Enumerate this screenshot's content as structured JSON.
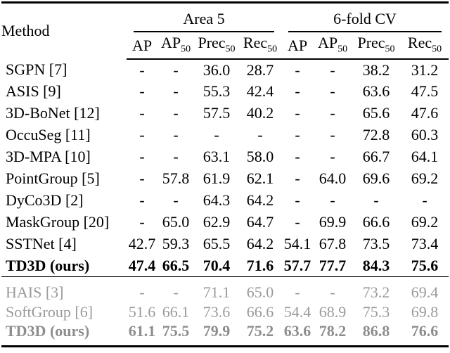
{
  "colors": {
    "text": "#000000",
    "muted_text": "#9a9a9a",
    "muted_bold_text": "#8d8d8d",
    "rule": "#000000",
    "background": "#ffffff"
  },
  "table": {
    "method_header": "Method",
    "groups": [
      {
        "label": "Area 5"
      },
      {
        "label": "6-fold CV"
      }
    ],
    "metrics": [
      {
        "base": "AP",
        "sub": ""
      },
      {
        "base": "AP",
        "sub": "50"
      },
      {
        "base": "Prec",
        "sub": "50"
      },
      {
        "base": "Rec",
        "sub": "50"
      }
    ],
    "sections": [
      {
        "muted": false,
        "rows": [
          {
            "method": "SGPN [7]",
            "bold": false,
            "values": [
              "-",
              "-",
              "36.0",
              "28.7",
              "-",
              "-",
              "38.2",
              "31.2"
            ]
          },
          {
            "method": "ASIS [9]",
            "bold": false,
            "values": [
              "-",
              "-",
              "55.3",
              "42.4",
              "-",
              "-",
              "63.6",
              "47.5"
            ]
          },
          {
            "method": "3D-BoNet [12]",
            "bold": false,
            "values": [
              "-",
              "-",
              "57.5",
              "40.2",
              "-",
              "-",
              "65.6",
              "47.6"
            ]
          },
          {
            "method": "OccuSeg [11]",
            "bold": false,
            "values": [
              "-",
              "-",
              "-",
              "-",
              "-",
              "-",
              "72.8",
              "60.3"
            ]
          },
          {
            "method": "3D-MPA [10]",
            "bold": false,
            "values": [
              "-",
              "-",
              "63.1",
              "58.0",
              "-",
              "-",
              "66.7",
              "64.1"
            ]
          },
          {
            "method": "PointGroup [5]",
            "bold": false,
            "values": [
              "-",
              "57.8",
              "61.9",
              "62.1",
              "-",
              "64.0",
              "69.6",
              "69.2"
            ]
          },
          {
            "method": "DyCo3D [2]",
            "bold": false,
            "values": [
              "-",
              "-",
              "64.3",
              "64.2",
              "-",
              "-",
              "-",
              "-"
            ]
          },
          {
            "method": "MaskGroup [20]",
            "bold": false,
            "values": [
              "-",
              "65.0",
              "62.9",
              "64.7",
              "-",
              "69.9",
              "66.6",
              "69.2"
            ]
          },
          {
            "method": "SSTNet [4]",
            "bold": false,
            "values": [
              "42.7",
              "59.3",
              "65.5",
              "64.2",
              "54.1",
              "67.8",
              "73.5",
              "73.4"
            ]
          },
          {
            "method": "TD3D (ours)",
            "bold": true,
            "values": [
              "47.4",
              "66.5",
              "70.4",
              "71.6",
              "57.7",
              "77.7",
              "84.3",
              "75.6"
            ]
          }
        ]
      },
      {
        "muted": true,
        "rows": [
          {
            "method": "HAIS [3]",
            "bold": false,
            "values": [
              "-",
              "-",
              "71.1",
              "65.0",
              "-",
              "-",
              "73.2",
              "69.4"
            ]
          },
          {
            "method": "SoftGroup [6]",
            "bold": false,
            "values": [
              "51.6",
              "66.1",
              "73.6",
              "66.6",
              "54.4",
              "68.9",
              "75.3",
              "69.8"
            ]
          },
          {
            "method": "TD3D (ours)",
            "bold": true,
            "values": [
              "61.1",
              "75.5",
              "79.9",
              "75.2",
              "63.6",
              "78.2",
              "86.8",
              "76.6"
            ]
          }
        ]
      }
    ]
  }
}
